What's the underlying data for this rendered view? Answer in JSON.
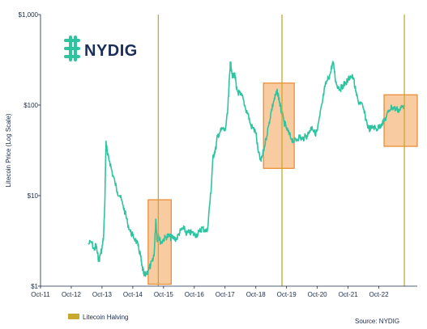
{
  "chart_data": {
    "type": "line",
    "title": "",
    "xlabel": "",
    "ylabel": "Litecoin Price (Log Scale)",
    "y_scale": "log",
    "ylim": [
      1,
      1000
    ],
    "y_ticks": [
      {
        "value": 1,
        "label": "$1"
      },
      {
        "value": 10,
        "label": "$10"
      },
      {
        "value": 100,
        "label": "$100"
      },
      {
        "value": 1000,
        "label": "$1,000"
      }
    ],
    "xlim": [
      2011.75,
      2024.0
    ],
    "x_ticks": [
      {
        "value": 2011.75,
        "label": "Oct-11"
      },
      {
        "value": 2012.75,
        "label": "Oct-12"
      },
      {
        "value": 2013.75,
        "label": "Oct-13"
      },
      {
        "value": 2014.75,
        "label": "Oct-14"
      },
      {
        "value": 2015.75,
        "label": "Oct-15"
      },
      {
        "value": 2016.75,
        "label": "Oct-16"
      },
      {
        "value": 2017.75,
        "label": "Oct-17"
      },
      {
        "value": 2018.75,
        "label": "Oct-18"
      },
      {
        "value": 2019.75,
        "label": "Oct-19"
      },
      {
        "value": 2020.75,
        "label": "Oct-20"
      },
      {
        "value": 2021.75,
        "label": "Oct-21"
      },
      {
        "value": 2022.75,
        "label": "Oct-22"
      }
    ],
    "grid": false,
    "series": [
      {
        "color": "#2ec4a0",
        "x": [
          2013.3,
          2013.4,
          2013.5,
          2013.55,
          2013.6,
          2013.65,
          2013.7,
          2013.75,
          2013.8,
          2013.84,
          2013.88,
          2013.93,
          2014.0,
          2014.08,
          2014.17,
          2014.25,
          2014.33,
          2014.42,
          2014.5,
          2014.58,
          2014.67,
          2014.75,
          2014.83,
          2014.92,
          2015.0,
          2015.04,
          2015.08,
          2015.12,
          2015.17,
          2015.25,
          2015.33,
          2015.4,
          2015.45,
          2015.5,
          2015.54,
          2015.58,
          2015.62,
          2015.67,
          2015.75,
          2015.83,
          2015.92,
          2016.0,
          2016.08,
          2016.17,
          2016.25,
          2016.33,
          2016.42,
          2016.5,
          2016.58,
          2016.67,
          2016.75,
          2016.83,
          2016.92,
          2017.0,
          2017.08,
          2017.17,
          2017.25,
          2017.3,
          2017.35,
          2017.4,
          2017.45,
          2017.5,
          2017.58,
          2017.67,
          2017.75,
          2017.83,
          2017.88,
          2017.92,
          2017.96,
          2018.0,
          2018.04,
          2018.08,
          2018.12,
          2018.17,
          2018.25,
          2018.33,
          2018.42,
          2018.5,
          2018.58,
          2018.67,
          2018.75,
          2018.83,
          2018.92,
          2019.0,
          2019.08,
          2019.17,
          2019.25,
          2019.33,
          2019.4,
          2019.45,
          2019.5,
          2019.54,
          2019.58,
          2019.67,
          2019.75,
          2019.83,
          2019.92,
          2020.0,
          2020.08,
          2020.17,
          2020.25,
          2020.33,
          2020.42,
          2020.5,
          2020.58,
          2020.67,
          2020.75,
          2020.83,
          2020.92,
          2021.0,
          2021.08,
          2021.17,
          2021.25,
          2021.3,
          2021.35,
          2021.42,
          2021.5,
          2021.58,
          2021.67,
          2021.75,
          2021.83,
          2021.92,
          2022.0,
          2022.08,
          2022.17,
          2022.25,
          2022.33,
          2022.42,
          2022.5,
          2022.58,
          2022.67,
          2022.75,
          2022.83,
          2022.92,
          2023.0,
          2023.08,
          2023.17,
          2023.25,
          2023.33,
          2023.42,
          2023.5,
          2023.58
        ],
        "y": [
          2.9,
          3.1,
          2.5,
          2.9,
          2.3,
          1.9,
          2.3,
          2.6,
          3.5,
          8.0,
          40.0,
          28.0,
          24.0,
          18.0,
          14.0,
          11.0,
          10.0,
          8.0,
          6.5,
          5.0,
          4.0,
          3.6,
          3.3,
          2.8,
          2.2,
          1.7,
          1.5,
          1.3,
          1.35,
          1.5,
          1.7,
          1.9,
          2.4,
          5.5,
          3.2,
          3.8,
          3.3,
          3.0,
          3.3,
          3.5,
          3.6,
          3.4,
          3.4,
          3.3,
          3.8,
          4.2,
          4.3,
          3.8,
          3.9,
          3.9,
          3.7,
          3.7,
          4.0,
          4.4,
          4.2,
          4.0,
          8.0,
          12.0,
          25.0,
          30.0,
          33.0,
          45.0,
          50.0,
          55.0,
          52.0,
          80.0,
          160.0,
          300.0,
          250.0,
          200.0,
          220.0,
          210.0,
          150.0,
          140.0,
          130.0,
          120.0,
          90.0,
          80.0,
          60.0,
          55.0,
          50.0,
          30.0,
          24.0,
          31.0,
          42.0,
          60.0,
          85.0,
          110.0,
          130.0,
          140.0,
          120.0,
          100.0,
          85.0,
          65.0,
          55.0,
          48.0,
          42.0,
          40.0,
          42.0,
          45.0,
          42.0,
          44.0,
          46.0,
          52.0,
          58.0,
          48.0,
          52.0,
          75.0,
          110.0,
          160.0,
          190.0,
          220.0,
          300.0,
          250.0,
          180.0,
          160.0,
          150.0,
          165.0,
          175.0,
          190.0,
          210.0,
          200.0,
          140.0,
          110.0,
          105.0,
          90.0,
          70.0,
          55.0,
          55.0,
          58.0,
          54.0,
          57.0,
          62.0,
          66.0,
          75.0,
          88.0,
          95.0,
          92.0,
          90.0,
          88.0,
          95.0,
          100.0
        ]
      }
    ],
    "halvings": [
      2015.58,
      2019.6,
      2023.58
    ],
    "highlight_boxes": [
      {
        "x0": 2015.25,
        "x1": 2016.0,
        "y0": 1.05,
        "y1": 9.0
      },
      {
        "x0": 2019.0,
        "x1": 2020.0,
        "y0": 20.0,
        "y1": 175.0
      },
      {
        "x0": 2022.92,
        "x1": 2024.5,
        "y0": 35.0,
        "y1": 130.0
      }
    ],
    "legend": {
      "label": "Litecoin Halving",
      "placement": "bottom-left"
    },
    "source": "Source: NYDIG",
    "logo_text": "NYDIG"
  },
  "colors": {
    "line": "#2ec4a0",
    "halving": "#c9a830",
    "box_fill": "#f6b981",
    "box_stroke": "#e8882a",
    "axis": "#1a2a4a",
    "logo": "#1b2e5a",
    "logo_icon": "#2ec4a0"
  }
}
